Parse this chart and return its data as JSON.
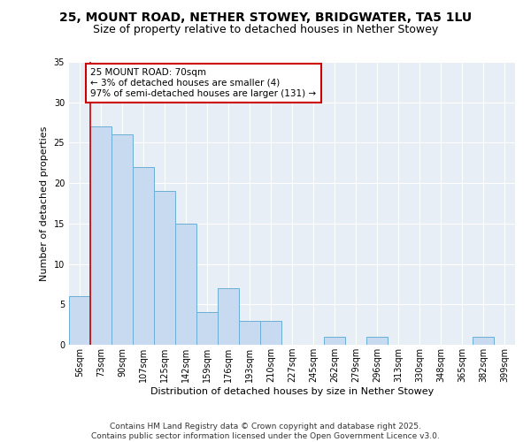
{
  "title_line1": "25, MOUNT ROAD, NETHER STOWEY, BRIDGWATER, TA5 1LU",
  "title_line2": "Size of property relative to detached houses in Nether Stowey",
  "xlabel": "Distribution of detached houses by size in Nether Stowey",
  "ylabel": "Number of detached properties",
  "categories": [
    "56sqm",
    "73sqm",
    "90sqm",
    "107sqm",
    "125sqm",
    "142sqm",
    "159sqm",
    "176sqm",
    "193sqm",
    "210sqm",
    "227sqm",
    "245sqm",
    "262sqm",
    "279sqm",
    "296sqm",
    "313sqm",
    "330sqm",
    "348sqm",
    "365sqm",
    "382sqm",
    "399sqm"
  ],
  "values": [
    6,
    27,
    26,
    22,
    19,
    15,
    4,
    7,
    3,
    3,
    0,
    0,
    1,
    0,
    1,
    0,
    0,
    0,
    0,
    1,
    0
  ],
  "bar_color": "#c8daf0",
  "bar_edge_color": "#6baed6",
  "annotation_text": "25 MOUNT ROAD: 70sqm\n← 3% of detached houses are smaller (4)\n97% of semi-detached houses are larger (131) →",
  "annotation_box_color": "#ffffff",
  "annotation_box_edge": "#cc0000",
  "marker_line_color": "#cc0000",
  "ylim": [
    0,
    35
  ],
  "yticks": [
    0,
    5,
    10,
    15,
    20,
    25,
    30,
    35
  ],
  "background_color": "#e8eef6",
  "footer_text": "Contains HM Land Registry data © Crown copyright and database right 2025.\nContains public sector information licensed under the Open Government Licence v3.0.",
  "title_fontsize": 10,
  "subtitle_fontsize": 9,
  "axis_label_fontsize": 8,
  "tick_fontsize": 7,
  "annotation_fontsize": 7.5,
  "footer_fontsize": 6.5
}
